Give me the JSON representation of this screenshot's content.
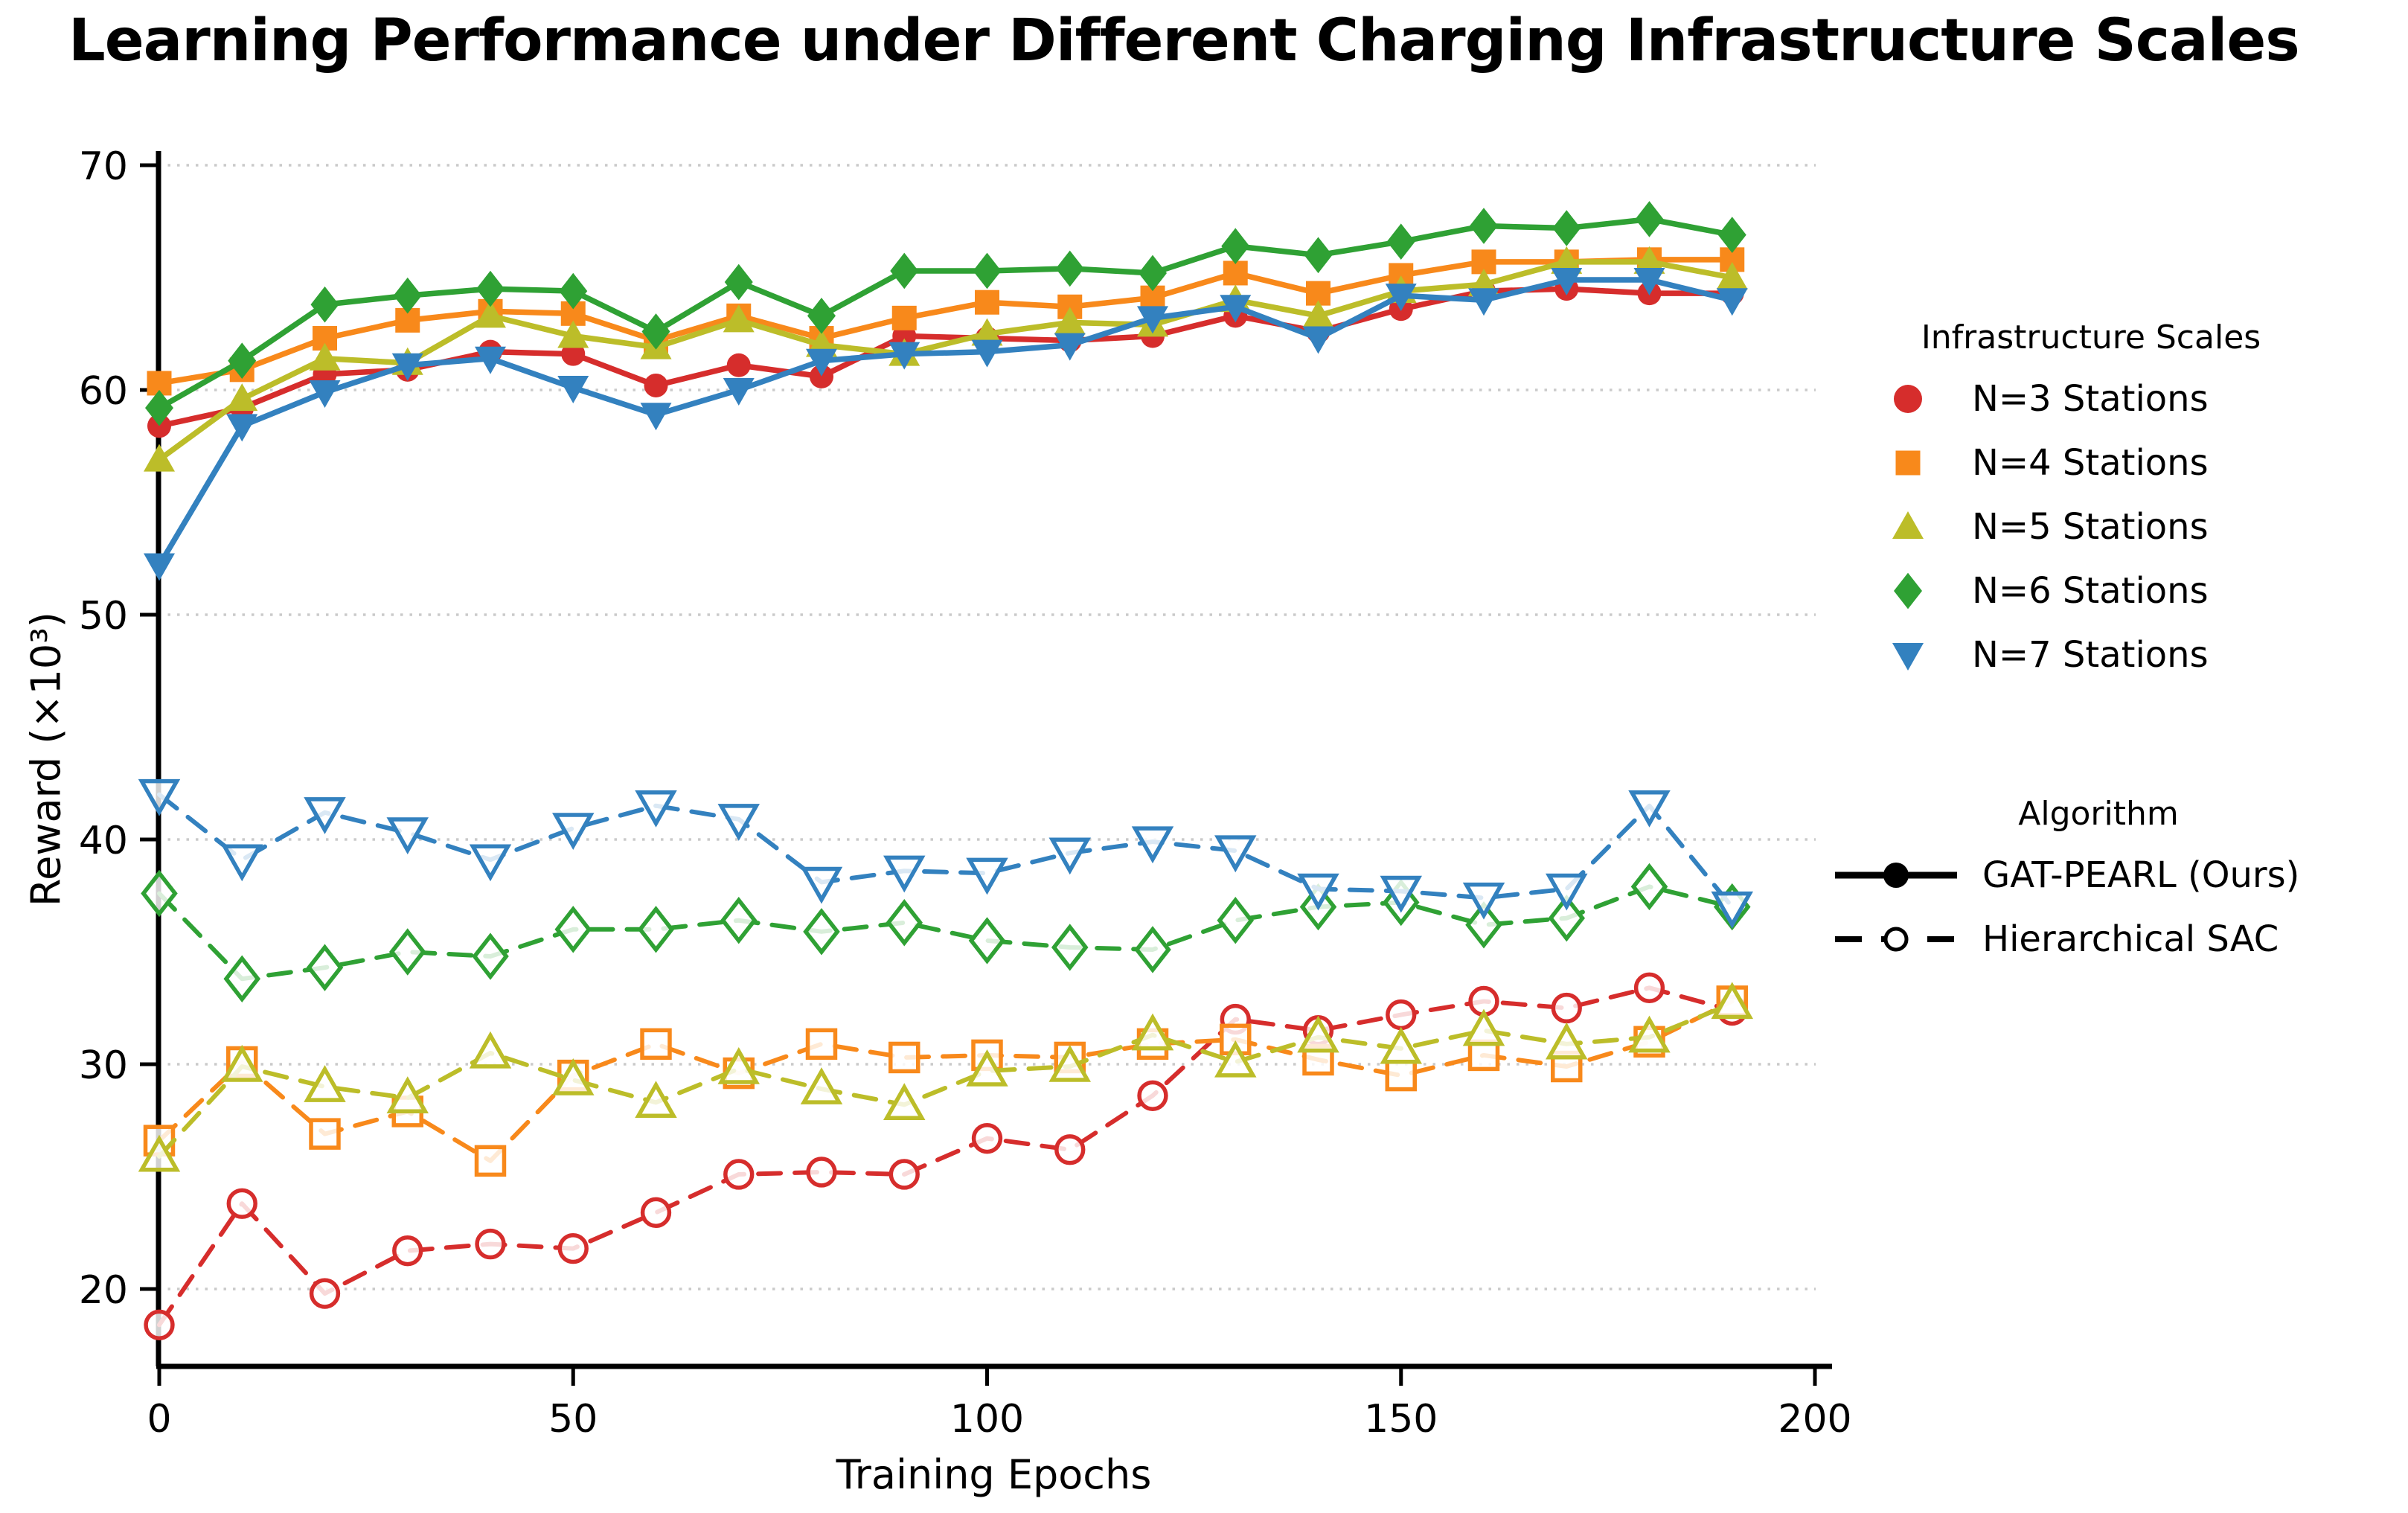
{
  "title": "Learning Performance under Different Charging Infrastructure Scales",
  "chart_data": {
    "type": "line",
    "title": "Learning Performance under Different Charging Infrastructure Scales",
    "xlabel": "Training Epochs",
    "ylabel": "Reward (×10³)",
    "x_ticks": [
      0,
      50,
      100,
      150,
      200
    ],
    "y_ticks": [
      20,
      30,
      40,
      50,
      60,
      70
    ],
    "xlim": [
      -4,
      204
    ],
    "ylim": [
      16.5,
      70.5
    ],
    "grid": "horizontal-dotted",
    "legend_position": "right-outside",
    "x": [
      0,
      10,
      20,
      30,
      40,
      50,
      60,
      70,
      80,
      90,
      100,
      110,
      120,
      130,
      140,
      150,
      160,
      170,
      180,
      190
    ],
    "series": [
      {
        "name": "N=3 Stations",
        "algorithm": "GAT-PEARL (Ours)",
        "marker": "circle",
        "line_style": "solid",
        "color": "#d62d2c",
        "values": [
          58.4,
          59.2,
          60.7,
          60.9,
          61.7,
          61.6,
          60.2,
          61.1,
          60.6,
          62.4,
          62.3,
          62.2,
          62.4,
          63.3,
          62.6,
          63.6,
          64.4,
          64.5,
          64.3,
          64.3
        ]
      },
      {
        "name": "N=4 Stations",
        "algorithm": "GAT-PEARL (Ours)",
        "marker": "square",
        "line_style": "solid",
        "color": "#f8891b",
        "values": [
          60.3,
          60.9,
          62.3,
          63.1,
          63.5,
          63.4,
          62.2,
          63.3,
          62.3,
          63.2,
          63.9,
          63.7,
          64.1,
          65.2,
          64.3,
          65.1,
          65.7,
          65.7,
          65.8,
          65.8
        ]
      },
      {
        "name": "N=5 Stations",
        "algorithm": "GAT-PEARL (Ours)",
        "marker": "triangle-up",
        "line_style": "solid",
        "color": "#bcbd29",
        "values": [
          56.9,
          59.6,
          61.4,
          61.2,
          63.3,
          62.4,
          61.9,
          63.1,
          62.0,
          61.6,
          62.5,
          63.0,
          62.9,
          64.0,
          63.3,
          64.4,
          64.7,
          65.7,
          65.7,
          65.0
        ]
      },
      {
        "name": "N=6 Stations",
        "algorithm": "GAT-PEARL (Ours)",
        "marker": "diamond",
        "line_style": "solid",
        "color": "#2fa134",
        "values": [
          59.2,
          61.3,
          63.8,
          64.2,
          64.5,
          64.4,
          62.6,
          64.8,
          63.3,
          65.3,
          65.3,
          65.4,
          65.2,
          66.4,
          66.0,
          66.6,
          67.3,
          67.2,
          67.6,
          66.9
        ]
      },
      {
        "name": "N=7 Stations",
        "algorithm": "GAT-PEARL (Ours)",
        "marker": "triangle-down",
        "line_style": "solid",
        "color": "#3381bf",
        "values": [
          52.2,
          58.4,
          59.9,
          61.1,
          61.4,
          60.1,
          58.9,
          60.0,
          61.3,
          61.6,
          61.7,
          62.0,
          63.2,
          63.7,
          62.3,
          64.2,
          64.0,
          64.9,
          64.9,
          64.0
        ]
      },
      {
        "name": "N=3 Stations",
        "algorithm": "Hierarchical SAC",
        "marker": "circle",
        "line_style": "dashed",
        "color": "#d62d2c",
        "values": [
          18.4,
          23.8,
          19.8,
          21.7,
          22.0,
          21.8,
          23.4,
          25.1,
          25.2,
          25.1,
          26.7,
          26.2,
          28.6,
          32.0,
          31.5,
          32.2,
          32.8,
          32.5,
          33.4,
          32.4
        ]
      },
      {
        "name": "N=4 Stations",
        "algorithm": "Hierarchical SAC",
        "marker": "square",
        "line_style": "dashed",
        "color": "#f8891b",
        "values": [
          26.6,
          30.1,
          26.9,
          27.9,
          25.7,
          29.5,
          30.9,
          29.6,
          30.9,
          30.3,
          30.4,
          30.3,
          30.9,
          31.1,
          30.2,
          29.5,
          30.4,
          29.9,
          31.0,
          32.8
        ]
      },
      {
        "name": "N=5 Stations",
        "algorithm": "Hierarchical SAC",
        "marker": "triangle-up",
        "line_style": "dashed",
        "color": "#bcbd29",
        "values": [
          25.9,
          29.9,
          29.0,
          28.5,
          30.5,
          29.3,
          28.3,
          29.8,
          28.9,
          28.2,
          29.7,
          29.9,
          31.3,
          30.1,
          31.2,
          30.7,
          31.5,
          30.9,
          31.2,
          32.7
        ]
      },
      {
        "name": "N=6 Stations",
        "algorithm": "Hierarchical SAC",
        "marker": "diamond",
        "line_style": "dashed",
        "color": "#2fa134",
        "values": [
          37.6,
          33.8,
          34.3,
          35.0,
          34.8,
          36.0,
          36.0,
          36.4,
          35.9,
          36.3,
          35.5,
          35.2,
          35.1,
          36.4,
          37.0,
          37.2,
          36.2,
          36.5,
          37.9,
          37.0
        ]
      },
      {
        "name": "N=7 Stations",
        "algorithm": "Hierarchical SAC",
        "marker": "triangle-down",
        "line_style": "dashed",
        "color": "#3381bf",
        "values": [
          42.0,
          39.1,
          41.2,
          40.3,
          39.1,
          40.5,
          41.5,
          40.9,
          38.1,
          38.6,
          38.5,
          39.4,
          39.9,
          39.5,
          37.8,
          37.7,
          37.4,
          37.8,
          41.5,
          37.0
        ]
      }
    ]
  },
  "legends": {
    "scales": {
      "title": "Infrastructure Scales",
      "items": [
        {
          "label": "N=3 Stations",
          "marker": "circle",
          "color": "#d62d2c"
        },
        {
          "label": "N=4 Stations",
          "marker": "square",
          "color": "#f8891b"
        },
        {
          "label": "N=5 Stations",
          "marker": "triangle-up",
          "color": "#bcbd29"
        },
        {
          "label": "N=6 Stations",
          "marker": "diamond",
          "color": "#2fa134"
        },
        {
          "label": "N=7 Stations",
          "marker": "triangle-down",
          "color": "#3381bf"
        }
      ]
    },
    "algorithms": {
      "title": "Algorithm",
      "items": [
        {
          "label": "GAT-PEARL (Ours)",
          "line_style": "solid",
          "marker": "circle-filled",
          "color": "#000000"
        },
        {
          "label": "Hierarchical SAC",
          "line_style": "dashed",
          "marker": "circle-open",
          "color": "#000000"
        }
      ]
    }
  }
}
